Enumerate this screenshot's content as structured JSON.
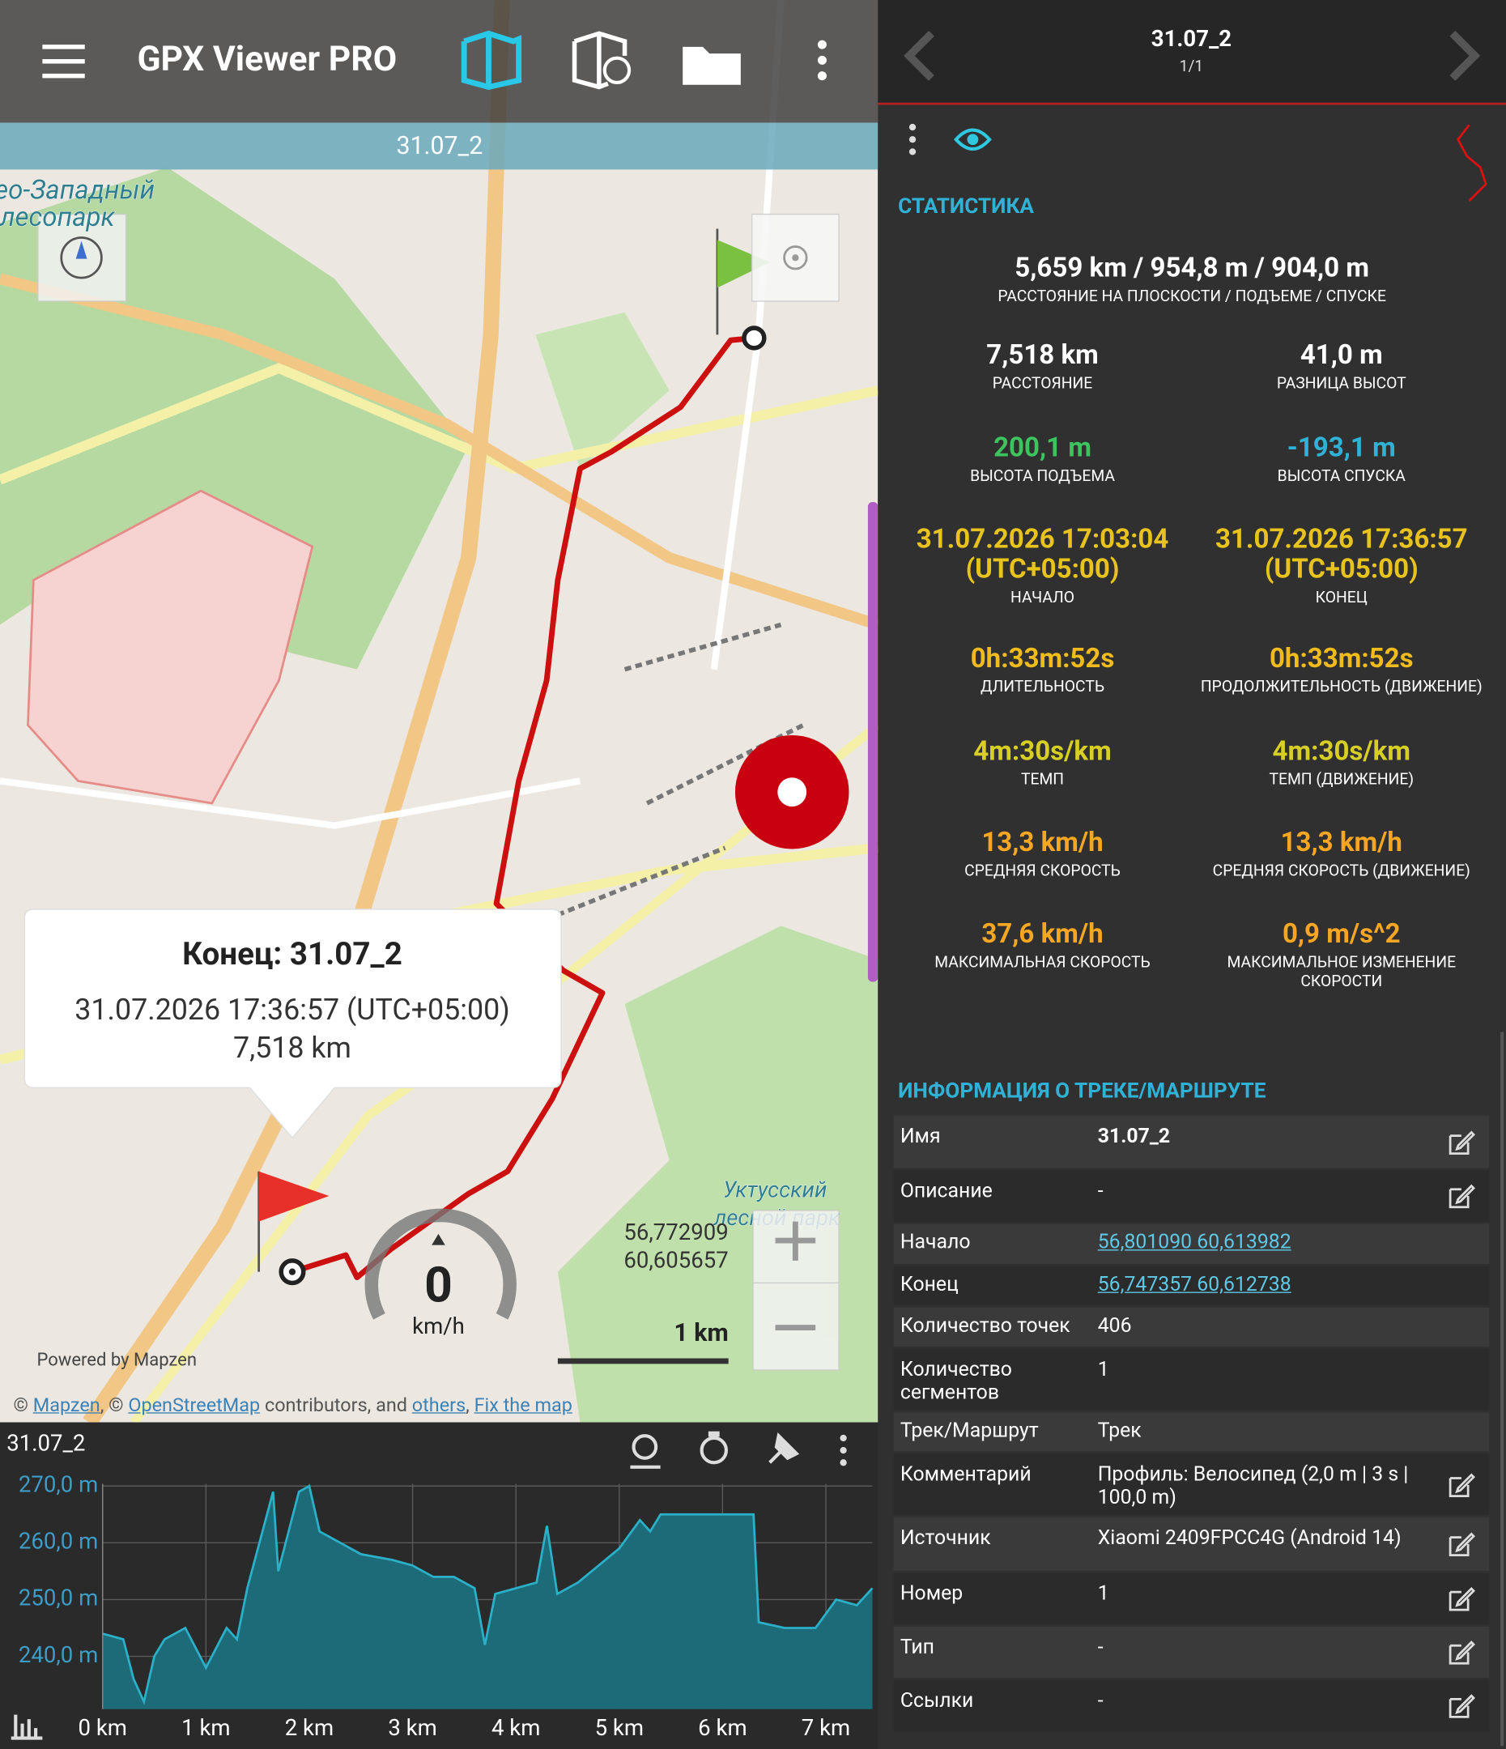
{
  "app_bar": {
    "title": "GPX Viewer PRO"
  },
  "track_bar": {
    "title": "31.07_2"
  },
  "map": {
    "labels": [
      "ео-Западный",
      "лесопарк",
      "Уктусский",
      "лесной парк"
    ],
    "callout": {
      "title": "Конец: 31.07_2",
      "time": "31.07.2026 17:36:57 (UTC+05:00)",
      "distance": "7,518 km"
    },
    "speed": {
      "value": "0",
      "unit": "km/h"
    },
    "coords": [
      "56,772909",
      "60,605657"
    ],
    "scale": "1 km",
    "powered": "Powered by Mapzen",
    "attribution": [
      {
        "text": "© ",
        "link": false
      },
      {
        "text": "Mapzen",
        "link": true
      },
      {
        "text": ", © ",
        "link": false
      },
      {
        "text": "OpenStreetMap",
        "link": true
      },
      {
        "text": " contributors, and ",
        "link": false
      },
      {
        "text": "others",
        "link": true
      },
      {
        "text": ", ",
        "link": false
      },
      {
        "text": "Fix the map",
        "link": true
      }
    ]
  },
  "profile_panel": {
    "title": "31.07_2"
  },
  "chart_data": {
    "type": "area",
    "color": "#2ab0c8",
    "fill": "#1d6b78",
    "x": [
      0,
      0.2,
      0.3,
      0.4,
      0.5,
      0.6,
      0.8,
      1.0,
      1.2,
      1.3,
      1.4,
      1.65,
      1.7,
      1.8,
      1.9,
      2.0,
      2.1,
      2.3,
      2.5,
      2.8,
      3.0,
      3.2,
      3.4,
      3.6,
      3.7,
      3.8,
      4.0,
      4.2,
      4.3,
      4.4,
      4.6,
      4.8,
      5.0,
      5.2,
      5.3,
      5.4,
      5.8,
      6.2,
      6.3,
      6.35,
      6.6,
      6.9,
      7.1,
      7.3,
      7.45
    ],
    "series": [
      {
        "name": "31.07_2",
        "values": [
          244,
          243,
          236,
          232,
          240,
          243,
          245,
          238,
          245,
          243,
          252,
          269,
          255,
          262,
          269,
          270,
          262,
          260,
          258,
          257,
          256,
          254,
          254,
          252,
          242,
          251,
          252,
          253,
          263,
          251,
          253,
          256,
          259,
          264,
          262,
          265,
          265,
          265,
          265,
          246,
          245,
          245,
          250,
          249,
          252
        ]
      }
    ],
    "xlim": [
      0,
      7.45
    ],
    "xticks": [
      {
        "value": 0,
        "label": "0 km"
      },
      {
        "value": 1,
        "label": "1 km"
      },
      {
        "value": 2,
        "label": "2 km"
      },
      {
        "value": 3,
        "label": "3 km"
      },
      {
        "value": 4,
        "label": "4 km"
      },
      {
        "value": 5,
        "label": "5 km"
      },
      {
        "value": 6,
        "label": "6 km"
      },
      {
        "value": 7,
        "label": "7 km"
      }
    ],
    "ylim": [
      230.7,
      270.4
    ],
    "yticks": [
      {
        "value": 240,
        "label": "240,0 m"
      },
      {
        "value": 250,
        "label": "250,0 m"
      },
      {
        "value": 260,
        "label": "260,0 m"
      },
      {
        "value": 270,
        "label": "270,0 m"
      }
    ],
    "grid": true
  },
  "side": {
    "title": "31.07_2",
    "page": "1/1",
    "stats_heading": "СТАТИСТИКА",
    "summary": {
      "value": "5,659 km / 954,8 m / 904,0 m",
      "label": "РАССТОЯНИЕ НА ПЛОСКОСТИ / ПОДЪЕМЕ / СПУСКЕ"
    },
    "stats": [
      {
        "value": "7,518 km",
        "label": "РАССТОЯНИЕ",
        "color": "#ffffff"
      },
      {
        "value": "41,0 m",
        "label": "РАЗНИЦА ВЫСОТ",
        "color": "#ffffff"
      },
      {
        "value": "200,1 m",
        "label": "ВЫСОТА ПОДЪЕМА",
        "color": "#3ec45f"
      },
      {
        "value": "-193,1 m",
        "label": "ВЫСОТА СПУСКА",
        "color": "#2fb2d6"
      },
      {
        "value": "31.07.2026 17:03:04 (UTC+05:00)",
        "label": "НАЧАЛО",
        "color": "#e8c31e"
      },
      {
        "value": "31.07.2026 17:36:57 (UTC+05:00)",
        "label": "КОНЕЦ",
        "color": "#e8c31e"
      },
      {
        "value": "0h:33m:52s",
        "label": "ДЛИТЕЛЬНОСТЬ",
        "color": "#f0bb1c"
      },
      {
        "value": "0h:33m:52s",
        "label": "ПРОДОЛЖИТЕЛЬНОСТЬ (ДВИЖЕНИЕ)",
        "color": "#f0bb1c"
      },
      {
        "value": "4m:30s/km",
        "label": "ТЕМП",
        "color": "#d8cf25"
      },
      {
        "value": "4m:30s/km",
        "label": "ТЕМП (ДВИЖЕНИЕ)",
        "color": "#d8cf25"
      },
      {
        "value": "13,3 km/h",
        "label": "СРЕДНЯЯ СКОРОСТЬ",
        "color": "#f5a623"
      },
      {
        "value": "13,3 km/h",
        "label": "СРЕДНЯЯ СКОРОСТЬ (ДВИЖЕНИЕ)",
        "color": "#f5a623"
      },
      {
        "value": "37,6 km/h",
        "label": "МАКСИМАЛЬНАЯ СКОРОСТЬ",
        "color": "#f5a623"
      },
      {
        "value": "0,9 m/s^2",
        "label": "МАКСИМАЛЬНОЕ ИЗМЕНЕНИЕ СКОРОСТИ",
        "color": "#f5a623"
      }
    ],
    "info_heading": "ИНФОРМАЦИЯ О ТРЕКЕ/МАРШРУТЕ",
    "info_rows": [
      {
        "key": "Имя",
        "value": "31.07_2",
        "link": false,
        "editable": true,
        "bold": true
      },
      {
        "key": "Описание",
        "value": "-",
        "link": false,
        "editable": true,
        "bold": false
      },
      {
        "key": "Начало",
        "value": "56,801090 60,613982",
        "link": true,
        "editable": false,
        "bold": false
      },
      {
        "key": "Конец",
        "value": "56,747357 60,612738",
        "link": true,
        "editable": false,
        "bold": false
      },
      {
        "key": "Количество точек",
        "value": "406",
        "link": false,
        "editable": false,
        "bold": false
      },
      {
        "key": "Количество сегментов",
        "value": "1",
        "link": false,
        "editable": false,
        "bold": false
      },
      {
        "key": "Трек/Маршрут",
        "value": "Трек",
        "link": false,
        "editable": false,
        "bold": false
      },
      {
        "key": "Комментарий",
        "value": "Профиль: Велосипед (2,0 m | 3 s | 100,0 m)",
        "link": false,
        "editable": true,
        "bold": false
      },
      {
        "key": "Источник",
        "value": "Xiaomi 2409FPCC4G (Android 14)",
        "link": false,
        "editable": true,
        "bold": false
      },
      {
        "key": "Номер",
        "value": "1",
        "link": false,
        "editable": true,
        "bold": false
      },
      {
        "key": "Тип",
        "value": "-",
        "link": false,
        "editable": true,
        "bold": false
      },
      {
        "key": "Ссылки",
        "value": "-",
        "link": false,
        "editable": true,
        "bold": false
      }
    ]
  }
}
